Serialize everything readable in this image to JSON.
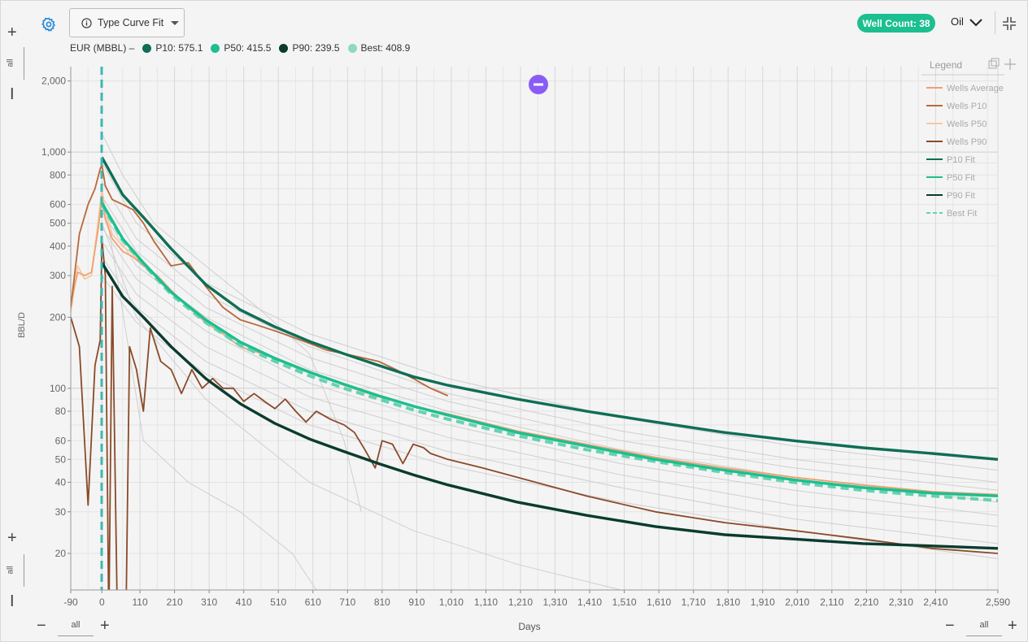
{
  "toolbar": {
    "settings_icon": "gear-icon",
    "mode_label": "Type Curve Fit",
    "well_count": "Well Count: 38",
    "phase": "Oil"
  },
  "eur": {
    "prefix": "EUR (MBBL) –",
    "items": [
      {
        "label": "P10: 575.1",
        "color": "#0f6e55"
      },
      {
        "label": "P50: 415.5",
        "color": "#1cbf8f"
      },
      {
        "label": "P90: 239.5",
        "color": "#0b3b2f"
      },
      {
        "label": "Best: 408.9",
        "color": "#8fd9c0"
      }
    ]
  },
  "zoom": {
    "all_label": "all"
  },
  "legend": {
    "title": "Legend",
    "items": [
      {
        "label": "Wells Average",
        "color": "#f0a070",
        "dash": false
      },
      {
        "label": "Wells P10",
        "color": "#b8683a",
        "dash": false
      },
      {
        "label": "Wells P50",
        "color": "#f7c9a3",
        "dash": false
      },
      {
        "label": "Wells P90",
        "color": "#8a4a28",
        "dash": false
      },
      {
        "label": "P10 Fit",
        "color": "#0f6e55",
        "dash": false
      },
      {
        "label": "P50 Fit",
        "color": "#1cbf8f",
        "dash": false
      },
      {
        "label": "P90 Fit",
        "color": "#0b3b2f",
        "dash": false
      },
      {
        "label": "Best Fit",
        "color": "#66d1b0",
        "dash": true
      }
    ]
  },
  "chart_data": {
    "type": "line",
    "xlabel": "Days",
    "ylabel": "BBL/D",
    "y_scale": "log",
    "xlim": [
      -90,
      2590
    ],
    "ylim": [
      14,
      2300
    ],
    "x_ticks": [
      "-90",
      "0",
      "110",
      "210",
      "310",
      "410",
      "510",
      "610",
      "710",
      "810",
      "910",
      "1,010",
      "1,110",
      "1,210",
      "1,310",
      "1,410",
      "1,510",
      "1,610",
      "1,710",
      "1,810",
      "1,910",
      "2,010",
      "2,110",
      "2,210",
      "2,310",
      "2,410",
      "2,590"
    ],
    "y_ticks": [
      {
        "v": 20,
        "label": "20"
      },
      {
        "v": 30,
        "label": "30"
      },
      {
        "v": 40,
        "label": "40"
      },
      {
        "v": 50,
        "label": "50"
      },
      {
        "v": 60,
        "label": "60"
      },
      {
        "v": 80,
        "label": "80"
      },
      {
        "v": 100,
        "label": "100"
      },
      {
        "v": 200,
        "label": "200"
      },
      {
        "v": 300,
        "label": "300"
      },
      {
        "v": 400,
        "label": "400"
      },
      {
        "v": 500,
        "label": "500"
      },
      {
        "v": 600,
        "label": "600"
      },
      {
        "v": 800,
        "label": "800"
      },
      {
        "v": 1000,
        "label": "1,000"
      },
      {
        "v": 2000,
        "label": "2,000"
      }
    ],
    "grid": true,
    "legend_position": "top-right",
    "series": [
      {
        "name": "P10 Fit",
        "color": "#0f6e55",
        "x": [
          0,
          60,
          120,
          200,
          300,
          400,
          500,
          600,
          700,
          800,
          900,
          1000,
          1200,
          1400,
          1600,
          1800,
          2000,
          2200,
          2400,
          2590
        ],
        "y": [
          950,
          660,
          530,
          390,
          275,
          215,
          182,
          158,
          140,
          125,
          112,
          103,
          90,
          80,
          72,
          65,
          60,
          56,
          53,
          50
        ]
      },
      {
        "name": "P50 Fit",
        "color": "#1cbf8f",
        "x": [
          0,
          60,
          120,
          200,
          300,
          400,
          500,
          600,
          700,
          800,
          900,
          1000,
          1200,
          1400,
          1600,
          1800,
          2000,
          2200,
          2400,
          2590
        ],
        "y": [
          610,
          430,
          340,
          255,
          195,
          157,
          134,
          117,
          104,
          93,
          84,
          77,
          65,
          57,
          50,
          45,
          41,
          38,
          36,
          35
        ]
      },
      {
        "name": "Best Fit",
        "color": "#66d1b0",
        "dash": true,
        "x": [
          0,
          60,
          120,
          200,
          300,
          400,
          500,
          600,
          700,
          800,
          900,
          1000,
          1200,
          1400,
          1600,
          1800,
          2000,
          2200,
          2400,
          2590
        ],
        "y": [
          600,
          425,
          335,
          250,
          190,
          152,
          130,
          113,
          100,
          90,
          81,
          74,
          63,
          55,
          49,
          44,
          40,
          37,
          35,
          33.5
        ]
      },
      {
        "name": "P90 Fit",
        "color": "#0b3b2f",
        "x": [
          0,
          60,
          120,
          200,
          300,
          400,
          500,
          600,
          700,
          800,
          900,
          1000,
          1200,
          1400,
          1600,
          1800,
          2000,
          2200,
          2400,
          2590
        ],
        "y": [
          340,
          245,
          200,
          150,
          110,
          86,
          71,
          61,
          54,
          48,
          43,
          39,
          33,
          29,
          26,
          24,
          23,
          22,
          21.5,
          21
        ]
      },
      {
        "name": "Wells Average",
        "color": "#f0a070",
        "x": [
          -90,
          -70,
          -50,
          -30,
          -10,
          0,
          10,
          30,
          60,
          90,
          120,
          160,
          200,
          250,
          300,
          350,
          400,
          450,
          500,
          600,
          700,
          800,
          900,
          1000,
          1200,
          1400,
          1600,
          1800,
          2000,
          2200,
          2400,
          2590
        ],
        "y": [
          230,
          310,
          300,
          310,
          480,
          650,
          520,
          430,
          380,
          360,
          330,
          300,
          260,
          220,
          190,
          170,
          150,
          142,
          135,
          118,
          103,
          92,
          84,
          78,
          66,
          58,
          51,
          46,
          42,
          39,
          36.5,
          35.5
        ]
      },
      {
        "name": "Wells P10",
        "color": "#b8683a",
        "x": [
          -90,
          -65,
          -40,
          -20,
          -5,
          0,
          10,
          30,
          60,
          90,
          120,
          150,
          200,
          250,
          300,
          350,
          400,
          450,
          500,
          550,
          600,
          650,
          700,
          750,
          800,
          850,
          900,
          950,
          1000
        ],
        "y": [
          220,
          450,
          600,
          700,
          850,
          880,
          720,
          630,
          600,
          570,
          500,
          420,
          330,
          340,
          270,
          220,
          195,
          185,
          175,
          165,
          155,
          145,
          140,
          135,
          130,
          120,
          110,
          100,
          93
        ]
      },
      {
        "name": "Wells P50",
        "color": "#f7c9a3",
        "x": [
          -90,
          -70,
          -50,
          -30,
          -10,
          0,
          10,
          30,
          60,
          90,
          120,
          160,
          200,
          250,
          300
        ],
        "y": [
          210,
          330,
          290,
          300,
          520,
          700,
          560,
          450,
          400,
          370,
          330,
          300,
          260,
          220,
          195
        ]
      },
      {
        "name": "Wells P90",
        "color": "#8a4a28",
        "x": [
          -90,
          -65,
          -40,
          -20,
          -5,
          0,
          10,
          20,
          30,
          45,
          60,
          70,
          80,
          100,
          120,
          140,
          170,
          200,
          230,
          260,
          290,
          320,
          350,
          380,
          410,
          440,
          470,
          500,
          530,
          560,
          590,
          620,
          660,
          700,
          730,
          760,
          790,
          810,
          840,
          870,
          900,
          930,
          950,
          1000,
          1100,
          1200,
          1400,
          1600,
          1800,
          2000,
          2200,
          2400,
          2590
        ],
        "y": [
          200,
          150,
          32,
          125,
          160,
          430,
          300,
          10,
          270,
          10,
          12,
          12,
          150,
          120,
          80,
          180,
          130,
          120,
          95,
          120,
          100,
          110,
          100,
          100,
          88,
          95,
          88,
          82,
          90,
          80,
          72,
          80,
          74,
          70,
          65,
          55,
          46,
          60,
          58,
          48,
          58,
          56,
          53,
          50,
          46,
          42,
          35,
          30,
          27,
          25,
          23,
          21,
          20
        ]
      }
    ],
    "background_wells": [
      {
        "x": [
          0,
          100,
          300,
          600,
          1000,
          1500,
          2000,
          2590
        ],
        "y": [
          900,
          500,
          280,
          170,
          110,
          75,
          57,
          45
        ]
      },
      {
        "x": [
          0,
          100,
          300,
          600,
          1000,
          1500,
          2000,
          2590
        ],
        "y": [
          750,
          430,
          250,
          150,
          95,
          66,
          50,
          40
        ]
      },
      {
        "x": [
          0,
          100,
          300,
          600,
          1000,
          1500,
          2000,
          2590
        ],
        "y": [
          650,
          380,
          220,
          135,
          88,
          60,
          46,
          37
        ]
      },
      {
        "x": [
          0,
          100,
          300,
          600,
          1000,
          1500,
          2000,
          2590
        ],
        "y": [
          560,
          330,
          200,
          120,
          80,
          55,
          42,
          33
        ]
      },
      {
        "x": [
          0,
          100,
          300,
          600,
          1000,
          1500,
          2000,
          2590
        ],
        "y": [
          480,
          290,
          175,
          105,
          70,
          48,
          37,
          29
        ]
      },
      {
        "x": [
          0,
          100,
          300,
          600,
          1000,
          1500,
          2000,
          2590
        ],
        "y": [
          420,
          250,
          150,
          92,
          62,
          43,
          32,
          26
        ]
      },
      {
        "x": [
          0,
          100,
          300,
          600,
          1000,
          1500,
          2000,
          2590
        ],
        "y": [
          360,
          220,
          130,
          80,
          54,
          38,
          28,
          22
        ]
      },
      {
        "x": [
          0,
          100,
          300,
          600,
          1000,
          1500,
          2000,
          2590
        ],
        "y": [
          300,
          190,
          115,
          70,
          47,
          33,
          25,
          19
        ]
      },
      {
        "x": [
          0,
          60,
          150,
          300,
          450,
          600,
          700,
          750
        ],
        "y": [
          1200,
          800,
          500,
          330,
          220,
          140,
          60,
          30
        ]
      },
      {
        "x": [
          0,
          50,
          120,
          250,
          400,
          550,
          650,
          720
        ],
        "y": [
          700,
          260,
          60,
          40,
          30,
          20,
          12,
          10
        ]
      },
      {
        "x": [
          0,
          100,
          300,
          600,
          900,
          1200,
          1500
        ],
        "y": [
          500,
          200,
          90,
          40,
          25,
          18,
          14
        ]
      }
    ]
  }
}
